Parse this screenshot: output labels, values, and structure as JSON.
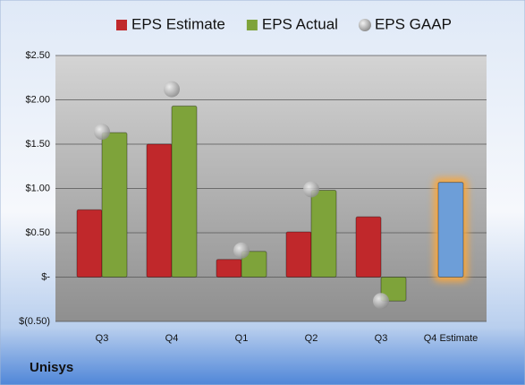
{
  "chart_data": {
    "type": "bar",
    "title": "Unisys",
    "categories": [
      "Q3",
      "Q4",
      "Q1",
      "Q2",
      "Q3",
      "Q4 Estimate"
    ],
    "series": [
      {
        "name": "EPS Estimate",
        "color": "#c0282b",
        "values": [
          0.76,
          1.5,
          0.2,
          0.51,
          0.68,
          1.07
        ]
      },
      {
        "name": "EPS Actual",
        "color": "#7ea33a",
        "values": [
          1.63,
          1.93,
          0.29,
          0.98,
          -0.27,
          null
        ]
      },
      {
        "name": "EPS GAAP",
        "color": "#a8a8a8",
        "marker": "circle",
        "values": [
          1.64,
          2.12,
          0.3,
          0.99,
          -0.27,
          null
        ]
      }
    ],
    "highlight": {
      "series": 0,
      "index": 5,
      "color": "#6d9ed8",
      "glow": "#f5a742"
    },
    "ylim": [
      -0.5,
      2.5
    ],
    "yticks": [
      {
        "value": -0.5,
        "label": "$(0.50)"
      },
      {
        "value": 0,
        "label": "$-"
      },
      {
        "value": 0.5,
        "label": "$0.50"
      },
      {
        "value": 1,
        "label": "$1.00"
      },
      {
        "value": 1.5,
        "label": "$1.50"
      },
      {
        "value": 2,
        "label": "$2.00"
      },
      {
        "value": 2.5,
        "label": "$2.50"
      }
    ],
    "grid": true
  }
}
